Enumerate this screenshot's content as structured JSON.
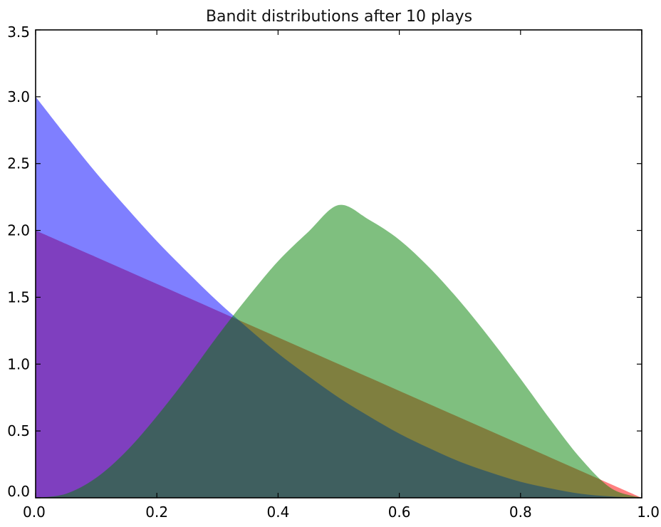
{
  "chart_data": {
    "type": "area",
    "title": "Bandit distributions after 10 plays",
    "xlabel": "",
    "ylabel": "",
    "xlim": [
      0.0,
      1.0
    ],
    "ylim": [
      0.0,
      3.5
    ],
    "grid": false,
    "x_ticks": [
      "0.0",
      "0.2",
      "0.4",
      "0.6",
      "0.8",
      "1.0"
    ],
    "y_ticks": [
      "0.0",
      "0.5",
      "1.0",
      "1.5",
      "2.0",
      "2.5",
      "3.0",
      "3.5"
    ],
    "x": [
      0.0,
      0.05,
      0.1,
      0.15,
      0.2,
      0.25,
      0.3,
      0.35,
      0.4,
      0.45,
      0.5,
      0.55,
      0.6,
      0.65,
      0.7,
      0.75,
      0.8,
      0.85,
      0.9,
      0.95,
      1.0
    ],
    "series": [
      {
        "color": "#ff0000",
        "alpha": 0.5,
        "values": [
          2.0,
          1.9,
          1.8,
          1.7,
          1.6,
          1.5,
          1.4,
          1.3,
          1.2,
          1.1,
          1.0,
          0.9,
          0.8,
          0.7,
          0.6,
          0.5,
          0.4,
          0.3,
          0.2,
          0.1,
          0.0
        ]
      },
      {
        "color": "#0000ff",
        "alpha": 0.5,
        "values": [
          3.0,
          2.71,
          2.43,
          2.17,
          1.92,
          1.69,
          1.47,
          1.27,
          1.08,
          0.91,
          0.75,
          0.61,
          0.48,
          0.37,
          0.27,
          0.19,
          0.12,
          0.07,
          0.03,
          0.01,
          0.0
        ]
      },
      {
        "color": "#008000",
        "alpha": 0.5,
        "values": [
          0.0,
          0.03,
          0.15,
          0.35,
          0.61,
          0.9,
          1.21,
          1.5,
          1.77,
          1.99,
          2.19,
          2.08,
          1.93,
          1.72,
          1.47,
          1.19,
          0.89,
          0.58,
          0.29,
          0.07,
          0.0
        ]
      }
    ]
  }
}
